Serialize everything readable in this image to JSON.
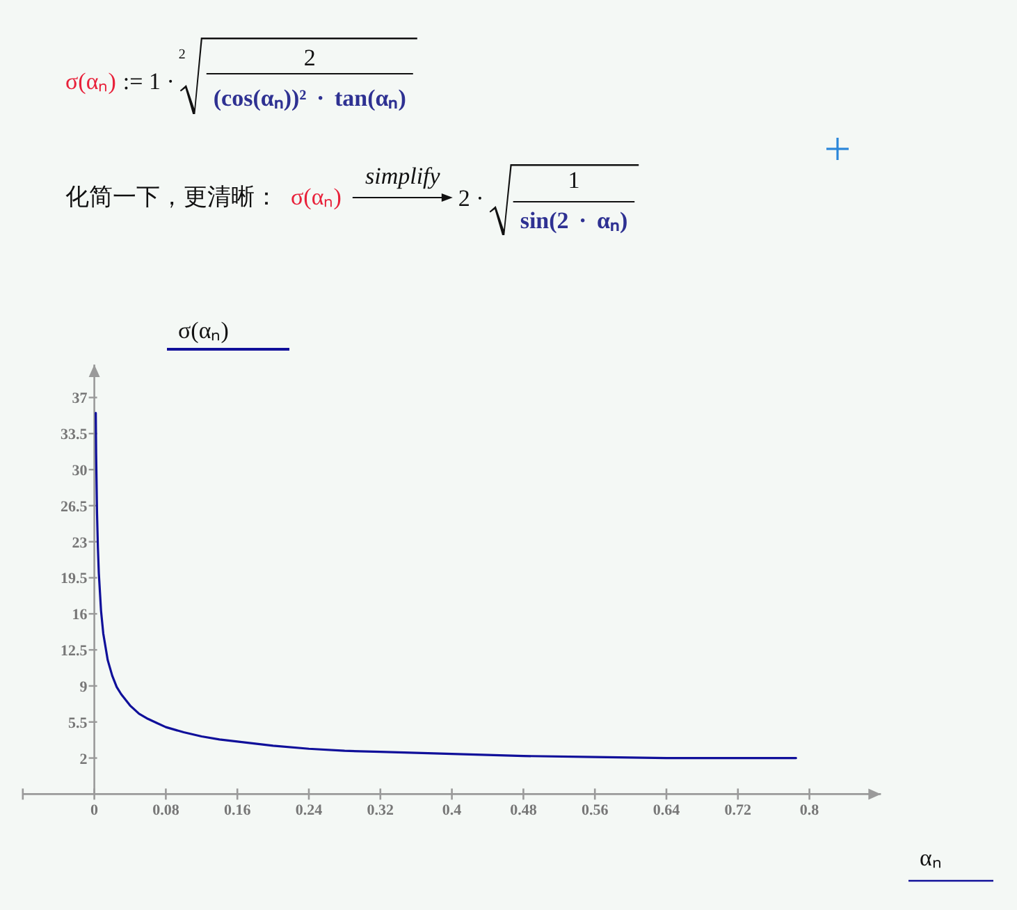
{
  "chart_data": {
    "type": "line",
    "annotations": [
      "σ(αₙ)",
      ":= 1 ·",
      "2",
      "2",
      "(cos(αₙ))² · tan(αₙ)",
      "化简一下，更清晰：",
      "σ(αₙ)",
      "simplify",
      "2 ·",
      "1",
      "sin(2 · αₙ)"
    ],
    "xlabel": "αₙ",
    "ylabel": "σ(αₙ)",
    "x": [
      0.0016,
      0.002,
      0.003,
      0.004,
      0.005,
      0.0075,
      0.01,
      0.015,
      0.02,
      0.025,
      0.03,
      0.04,
      0.05,
      0.06,
      0.07,
      0.08,
      0.1,
      0.12,
      0.14,
      0.16,
      0.2,
      0.24,
      0.28,
      0.32,
      0.36,
      0.4,
      0.48,
      0.56,
      0.64,
      0.72,
      0.785
    ],
    "series": [
      {
        "color": "#10109a",
        "values": [
          35.5,
          31.6,
          25.8,
          22.4,
          20.0,
          16.3,
          14.1,
          11.5,
          10.0,
          8.9,
          8.2,
          7.1,
          6.3,
          5.8,
          5.4,
          5.0,
          4.5,
          4.1,
          3.8,
          3.6,
          3.2,
          2.9,
          2.7,
          2.6,
          2.5,
          2.4,
          2.2,
          2.1,
          2.0,
          2.0,
          2.0
        ]
      }
    ],
    "xlim": [
      -0.08,
      0.88
    ],
    "ylim": [
      -1.5,
      40.2
    ],
    "xticks": [
      0,
      0.08,
      0.16,
      0.24,
      0.32,
      0.4,
      0.48,
      0.56,
      0.64,
      0.72,
      0.8
    ],
    "yticks": [
      2,
      5.5,
      9,
      12.5,
      16,
      19.5,
      23,
      26.5,
      30,
      33.5,
      37
    ],
    "marker": "none",
    "line_style": "solid"
  }
}
